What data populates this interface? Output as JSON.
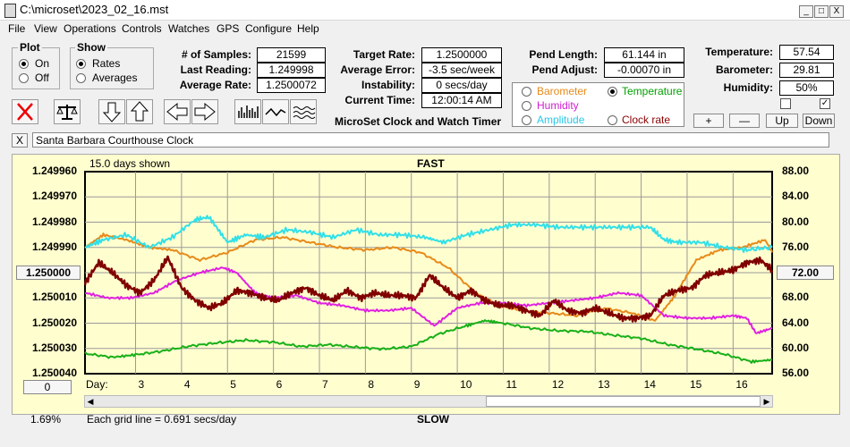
{
  "window": {
    "title": "C:\\microset\\2023_02_16.mst",
    "min": "_",
    "max": "□",
    "close": "X"
  },
  "menu": [
    "File",
    "View",
    "Operations",
    "Controls",
    "Watches",
    "GPS",
    "Configure",
    "Help"
  ],
  "plot_group": {
    "title": "Plot",
    "on": "On",
    "off": "Off",
    "selected": "On"
  },
  "show_group": {
    "title": "Show",
    "rates": "Rates",
    "averages": "Averages",
    "selected": "Rates"
  },
  "stats": {
    "samples_label": "# of Samples:",
    "samples": "21599",
    "last_label": "Last Reading:",
    "last": "1.249998",
    "avg_label": "Average Rate:",
    "avg": "1.2500072"
  },
  "targets": {
    "target_label": "Target Rate:",
    "target": "1.2500000",
    "error_label": "Average Error:",
    "error": "-3.5 sec/week",
    "instab_label": "Instability:",
    "instab": "0 secs/day",
    "time_label": "Current Time:",
    "time": "12:00:14 AM"
  },
  "app_caption": "MicroSet Clock and Watch Timer",
  "pendulum": {
    "length_label": "Pend Length:",
    "length": "61.144 in",
    "adjust_label": "Pend Adjust:",
    "adjust": "-0.00070 in"
  },
  "sensor_select": {
    "barometer": "Barometer",
    "temperature": "Temperature",
    "humidity": "Humidity",
    "amplitude": "Amplitude",
    "clock_rate": "Clock rate",
    "selected": "Temperature",
    "colors": {
      "barometer": "#e88a1a",
      "temperature": "#00a000",
      "humidity": "#d020d0",
      "amplitude": "#28c8e8",
      "clock_rate": "#8b0000"
    }
  },
  "environment": {
    "temp_label": "Temperature:",
    "temp": "57.54",
    "baro_label": "Barometer:",
    "baro": "29.81",
    "hum_label": "Humidity:",
    "hum": "50%",
    "check1": false,
    "check2": true
  },
  "adjust_buttons": {
    "plus": "+",
    "minus": "—",
    "up": "Up",
    "down": "Down"
  },
  "clock_name": "Santa Barbara Courthouse Clock",
  "clear_name": "X",
  "chart_data": {
    "type": "line",
    "days_shown": "15.0 days shown",
    "top_label": "FAST",
    "bottom_label": "SLOW",
    "left_ticks": [
      "1.249960",
      "1.249970",
      "1.249980",
      "1.249990",
      "1.250000",
      "1.250010",
      "1.250020",
      "1.250030",
      "1.250040"
    ],
    "left_center_button": "1.250000",
    "right_ticks": [
      "88.00",
      "84.00",
      "80.00",
      "76.00",
      "72.00",
      "68.00",
      "64.00",
      "60.00",
      "56.00"
    ],
    "right_center_button": "72.00",
    "day_label": "Day:",
    "days": [
      "3",
      "4",
      "5",
      "6",
      "7",
      "8",
      "9",
      "10",
      "11",
      "12",
      "13",
      "14",
      "15",
      "16"
    ],
    "scale_button": "0",
    "percent": "1.69%",
    "grid_note": "Each grid line = 0.691 secs/day",
    "x_range": [
      1.9,
      16.85
    ],
    "series": [
      {
        "name": "Temperature",
        "color": "#18b018",
        "axis": "right",
        "x": [
          1.9,
          2.5,
          3.0,
          3.6,
          4.2,
          4.8,
          5.4,
          6.0,
          6.6,
          7.2,
          7.8,
          8.4,
          9.0,
          9.6,
          10.2,
          10.6,
          11.0,
          11.6,
          12.2,
          12.8,
          13.4,
          14.0,
          14.6,
          15.2,
          15.8,
          16.4,
          16.85
        ],
        "y": [
          59.2,
          58.6,
          59.0,
          59.6,
          60.4,
          60.9,
          61.3,
          61.0,
          60.3,
          60.6,
          60.2,
          59.9,
          60.3,
          62.3,
          63.6,
          64.4,
          64.0,
          63.2,
          62.8,
          62.7,
          62.1,
          61.6,
          60.6,
          59.9,
          59.1,
          57.9,
          58.2
        ]
      },
      {
        "name": "Barometer",
        "color": "#e88a1a",
        "axis": "left",
        "x": [
          1.9,
          2.3,
          2.8,
          3.3,
          3.8,
          4.4,
          5.0,
          5.6,
          6.2,
          6.8,
          7.4,
          8.0,
          8.6,
          9.2,
          9.8,
          10.4,
          10.9,
          11.4,
          12.0,
          12.6,
          13.2,
          13.8,
          14.3,
          14.7,
          15.2,
          15.7,
          16.2,
          16.7,
          16.85
        ],
        "y": [
          1.24999,
          1.249985,
          1.249987,
          1.24999,
          1.249991,
          1.249995,
          1.249992,
          1.249987,
          1.249986,
          1.249988,
          1.24999,
          1.249991,
          1.24999,
          1.249992,
          1.249998,
          1.250008,
          1.250013,
          1.250015,
          1.250016,
          1.250017,
          1.250014,
          1.250016,
          1.250019,
          1.25001,
          1.249995,
          1.249991,
          1.24999,
          1.249987,
          1.249992
        ]
      },
      {
        "name": "Amplitude",
        "color": "#30e0e8",
        "axis": "left",
        "x": [
          1.9,
          2.3,
          2.8,
          3.3,
          3.8,
          4.3,
          4.6,
          5.0,
          5.4,
          5.8,
          6.3,
          6.8,
          7.3,
          7.8,
          8.3,
          8.8,
          9.3,
          9.7,
          10.2,
          10.7,
          11.2,
          11.7,
          12.2,
          12.7,
          13.2,
          13.7,
          14.2,
          14.5,
          14.8,
          15.3,
          15.8,
          16.3,
          16.85
        ],
        "y": [
          1.24999,
          1.249987,
          1.249985,
          1.24999,
          1.249986,
          1.249979,
          1.249978,
          1.249988,
          1.249985,
          1.249986,
          1.249983,
          1.249984,
          1.249986,
          1.249983,
          1.249985,
          1.249985,
          1.249986,
          1.249988,
          1.249985,
          1.249983,
          1.249981,
          1.249981,
          1.249982,
          1.249982,
          1.249982,
          1.249982,
          1.249982,
          1.249987,
          1.249988,
          1.249988,
          1.24999,
          1.249991,
          1.24999
        ]
      },
      {
        "name": "Humidity",
        "color": "#e020e0",
        "axis": "left",
        "x": [
          1.9,
          2.4,
          2.9,
          3.4,
          3.9,
          4.4,
          4.9,
          5.2,
          5.6,
          6.0,
          6.5,
          7.0,
          7.5,
          8.0,
          8.5,
          9.0,
          9.5,
          10.0,
          10.5,
          11.0,
          11.5,
          12.0,
          12.5,
          13.0,
          13.5,
          14.0,
          14.5,
          15.0,
          15.5,
          16.0,
          16.3,
          16.5,
          16.85
        ],
        "y": [
          1.250008,
          1.25001,
          1.25001,
          1.250008,
          1.250003,
          1.25,
          1.249998,
          1.25,
          1.250008,
          1.25001,
          1.250009,
          1.250012,
          1.250013,
          1.250015,
          1.250015,
          1.250014,
          1.250021,
          1.250014,
          1.250012,
          1.250012,
          1.250013,
          1.250012,
          1.250011,
          1.25001,
          1.250008,
          1.250009,
          1.250017,
          1.250018,
          1.250018,
          1.250017,
          1.250018,
          1.250024,
          1.250022
        ]
      },
      {
        "name": "Clock rate",
        "color": "#800000",
        "axis": "left",
        "x": [
          1.9,
          2.2,
          2.5,
          2.8,
          3.1,
          3.4,
          3.7,
          4.0,
          4.3,
          4.6,
          4.9,
          5.2,
          5.5,
          5.8,
          6.1,
          6.4,
          6.7,
          7.0,
          7.3,
          7.6,
          7.9,
          8.2,
          8.5,
          8.8,
          9.1,
          9.4,
          9.7,
          10.0,
          10.3,
          10.6,
          10.9,
          11.2,
          11.5,
          11.8,
          12.1,
          12.4,
          12.7,
          13.0,
          13.3,
          13.6,
          13.9,
          14.2,
          14.5,
          14.8,
          15.1,
          15.4,
          15.7,
          16.0,
          16.3,
          16.6,
          16.85
        ],
        "y": [
          1.250004,
          1.249996,
          1.25,
          1.250005,
          1.250008,
          1.250003,
          1.249994,
          1.250006,
          1.250011,
          1.250014,
          1.250012,
          1.250007,
          1.250008,
          1.25001,
          1.250011,
          1.250008,
          1.250006,
          1.250009,
          1.250011,
          1.250007,
          1.25001,
          1.250008,
          1.250009,
          1.250009,
          1.25001,
          1.250001,
          1.250006,
          1.25001,
          1.250007,
          1.250011,
          1.250013,
          1.250013,
          1.250015,
          1.250017,
          1.250011,
          1.250015,
          1.250016,
          1.250014,
          1.250016,
          1.250018,
          1.250018,
          1.250017,
          1.250009,
          1.250007,
          1.250006,
          1.250001,
          1.25,
          1.249999,
          1.249996,
          1.249995,
          1.249999
        ]
      }
    ]
  }
}
